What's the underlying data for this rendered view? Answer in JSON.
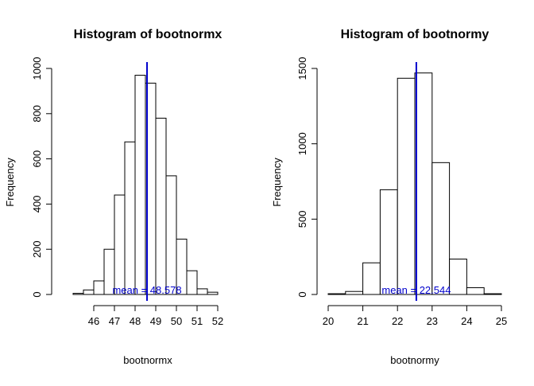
{
  "chart_data": [
    {
      "type": "bar",
      "title": "Histogram of bootnormx",
      "xlabel": "bootnormx",
      "ylabel": "Frequency",
      "bin_edges": [
        45,
        45.5,
        46,
        46.5,
        47,
        47.5,
        48,
        48.5,
        49,
        49.5,
        50,
        50.5,
        51,
        51.5,
        52
      ],
      "values": [
        5,
        20,
        60,
        200,
        440,
        675,
        970,
        935,
        780,
        525,
        245,
        105,
        25,
        10
      ],
      "xlim": [
        44.5,
        52.5
      ],
      "ylim": [
        0,
        1000
      ],
      "x_ticks": [
        46,
        47,
        48,
        49,
        50,
        51,
        52
      ],
      "y_ticks": [
        0,
        200,
        400,
        600,
        800,
        1000
      ],
      "mean": 48.578,
      "mean_label": "mean = 48.578",
      "mean_color": "#0000cd"
    },
    {
      "type": "bar",
      "title": "Histogram of bootnormy",
      "xlabel": "bootnormy",
      "ylabel": "Frequency",
      "bin_edges": [
        20,
        20.5,
        21,
        21.5,
        22,
        22.5,
        23,
        23.5,
        24,
        24.5,
        25
      ],
      "values": [
        5,
        20,
        210,
        695,
        1435,
        1470,
        875,
        235,
        45,
        5
      ],
      "xlim": [
        20,
        25
      ],
      "ylim": [
        0,
        1500
      ],
      "x_ticks": [
        20,
        21,
        22,
        23,
        24,
        25
      ],
      "y_ticks": [
        0,
        500,
        1000,
        1500
      ],
      "mean": 22.544,
      "mean_label": "mean = 22.544",
      "mean_color": "#0000cd"
    }
  ]
}
